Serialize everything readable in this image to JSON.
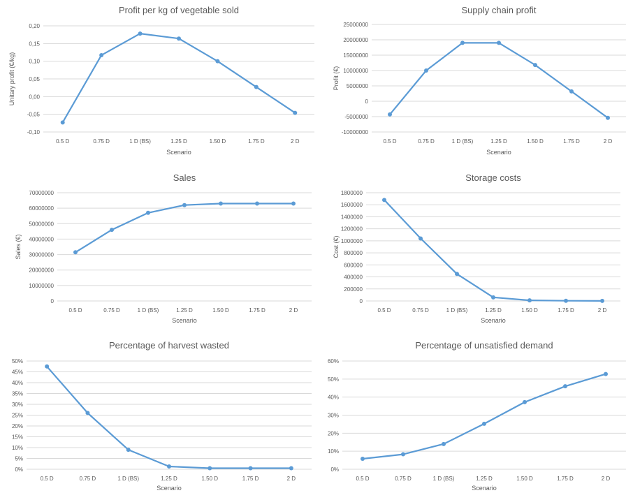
{
  "chart_data": [
    {
      "type": "line",
      "title": "Profit per kg of vegetable sold",
      "xlabel": "Scenario",
      "ylabel": "Unitary profit (€/kg)",
      "categories": [
        "0.5 D",
        "0.75 D",
        "1 D (BS)",
        "1.25 D",
        "1.50 D",
        "1.75 D",
        "2 D"
      ],
      "values": [
        -0.073,
        0.117,
        0.178,
        0.164,
        0.1,
        0.027,
        -0.046
      ],
      "ylim": [
        -0.1,
        0.2
      ],
      "yticks": [
        -0.1,
        -0.05,
        0.0,
        0.05,
        0.1,
        0.15,
        0.2
      ],
      "ytick_labels": [
        "-0,10",
        "-0,05",
        "0,00",
        "0,05",
        "0,10",
        "0,15",
        "0,20"
      ],
      "grid": true
    },
    {
      "type": "line",
      "title": "Supply chain profit",
      "xlabel": "Scenario",
      "ylabel": "Profit (€)",
      "categories": [
        "0.5 D",
        "0.75 D",
        "1 D (BS)",
        "1.25 D",
        "1.50 D",
        "1.75 D",
        "2 D"
      ],
      "values": [
        -4300000,
        10000000,
        19000000,
        19000000,
        11800000,
        3200000,
        -5400000
      ],
      "ylim": [
        -10000000,
        25000000
      ],
      "yticks": [
        -10000000,
        -5000000,
        0,
        5000000,
        10000000,
        15000000,
        20000000,
        25000000
      ],
      "ytick_labels": [
        "-10000000",
        "-5000000",
        "0",
        "5000000",
        "10000000",
        "15000000",
        "20000000",
        "25000000"
      ],
      "grid": true
    },
    {
      "type": "line",
      "title": "Sales",
      "xlabel": "Scenario",
      "ylabel": "Sales (€)",
      "categories": [
        "0.5 D",
        "0.75 D",
        "1 D (BS)",
        "1.25 D",
        "1.50 D",
        "1.75 D",
        "2 D"
      ],
      "values": [
        31500000,
        46000000,
        57000000,
        62000000,
        63000000,
        63000000,
        63000000
      ],
      "ylim": [
        0,
        70000000
      ],
      "yticks": [
        0,
        10000000,
        20000000,
        30000000,
        40000000,
        50000000,
        60000000,
        70000000
      ],
      "ytick_labels": [
        "0",
        "10000000",
        "20000000",
        "30000000",
        "40000000",
        "50000000",
        "60000000",
        "70000000"
      ],
      "grid": true
    },
    {
      "type": "line",
      "title": "Storage costs",
      "xlabel": "Scenario",
      "ylabel": "Cost (€)",
      "categories": [
        "0.5 D",
        "0.75 D",
        "1 D (BS)",
        "1.25 D",
        "1.50 D",
        "1.75 D",
        "2 D"
      ],
      "values": [
        1680000,
        1040000,
        450000,
        60000,
        10000,
        3000,
        1000
      ],
      "ylim": [
        0,
        1800000
      ],
      "yticks": [
        0,
        200000,
        400000,
        600000,
        800000,
        1000000,
        1200000,
        1400000,
        1600000,
        1800000
      ],
      "ytick_labels": [
        "0",
        "200000",
        "400000",
        "600000",
        "800000",
        "1000000",
        "1200000",
        "1400000",
        "1600000",
        "1800000"
      ],
      "grid": true
    },
    {
      "type": "line",
      "title": "Percentage of harvest wasted",
      "xlabel": "Scenario",
      "ylabel": "",
      "categories": [
        "0.5 D",
        "0.75 D",
        "1 D (BS)",
        "1.25 D",
        "1.50 D",
        "1.75 D",
        "2 D"
      ],
      "values": [
        0.475,
        0.26,
        0.09,
        0.013,
        0.005,
        0.005,
        0.005
      ],
      "ylim": [
        0,
        0.5
      ],
      "yticks": [
        0,
        0.05,
        0.1,
        0.15,
        0.2,
        0.25,
        0.3,
        0.35,
        0.4,
        0.45,
        0.5
      ],
      "ytick_labels": [
        "0%",
        "5%",
        "10%",
        "15%",
        "20%",
        "25%",
        "30%",
        "35%",
        "40%",
        "45%",
        "50%"
      ],
      "grid": true
    },
    {
      "type": "line",
      "title": "Percentage of unsatisfied demand",
      "xlabel": "Scenario",
      "ylabel": "",
      "categories": [
        "0.5 D",
        "0.75 D",
        "1 D (BS)",
        "1.25 D",
        "1.50 D",
        "1.75 D",
        "2 D"
      ],
      "values": [
        0.058,
        0.083,
        0.14,
        0.252,
        0.372,
        0.46,
        0.528
      ],
      "ylim": [
        0,
        0.6
      ],
      "yticks": [
        0,
        0.1,
        0.2,
        0.3,
        0.4,
        0.5,
        0.6
      ],
      "ytick_labels": [
        "0%",
        "10%",
        "20%",
        "30%",
        "40%",
        "50%",
        "60%"
      ],
      "grid": true
    }
  ]
}
